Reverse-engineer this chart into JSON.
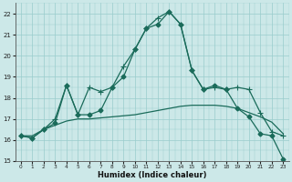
{
  "xlabel": "Humidex (Indice chaleur)",
  "background_color": "#cce8e8",
  "grid_color": "#99cccc",
  "line_color": "#1a6b5a",
  "x_values": [
    0,
    1,
    2,
    3,
    4,
    5,
    6,
    7,
    8,
    9,
    10,
    11,
    12,
    13,
    14,
    15,
    16,
    17,
    18,
    19,
    20,
    21,
    22,
    23
  ],
  "line1": [
    16.2,
    16.1,
    16.5,
    17.0,
    18.6,
    17.2,
    18.5,
    18.3,
    18.5,
    19.5,
    20.3,
    21.3,
    21.8,
    22.1,
    21.5,
    19.3,
    18.4,
    18.5,
    18.4,
    18.5,
    18.4,
    17.3,
    16.4,
    16.2
  ],
  "line2": [
    16.2,
    16.1,
    16.5,
    16.8,
    18.6,
    17.2,
    17.2,
    17.4,
    18.5,
    19.0,
    20.3,
    21.3,
    21.5,
    22.1,
    21.5,
    19.3,
    18.4,
    18.6,
    18.4,
    17.5,
    17.1,
    16.3,
    16.2,
    15.1
  ],
  "line3": [
    16.2,
    16.2,
    16.5,
    16.7,
    16.9,
    17.0,
    17.0,
    17.05,
    17.1,
    17.15,
    17.2,
    17.3,
    17.4,
    17.5,
    17.6,
    17.65,
    17.65,
    17.65,
    17.6,
    17.5,
    17.3,
    17.1,
    16.85,
    16.3
  ],
  "ylim": [
    15,
    22.5
  ],
  "xlim": [
    -0.5,
    23.5
  ],
  "yticks": [
    15,
    16,
    17,
    18,
    19,
    20,
    21,
    22
  ],
  "xticks": [
    0,
    1,
    2,
    3,
    4,
    5,
    6,
    7,
    8,
    9,
    10,
    11,
    12,
    13,
    14,
    15,
    16,
    17,
    18,
    19,
    20,
    21,
    22,
    23
  ]
}
